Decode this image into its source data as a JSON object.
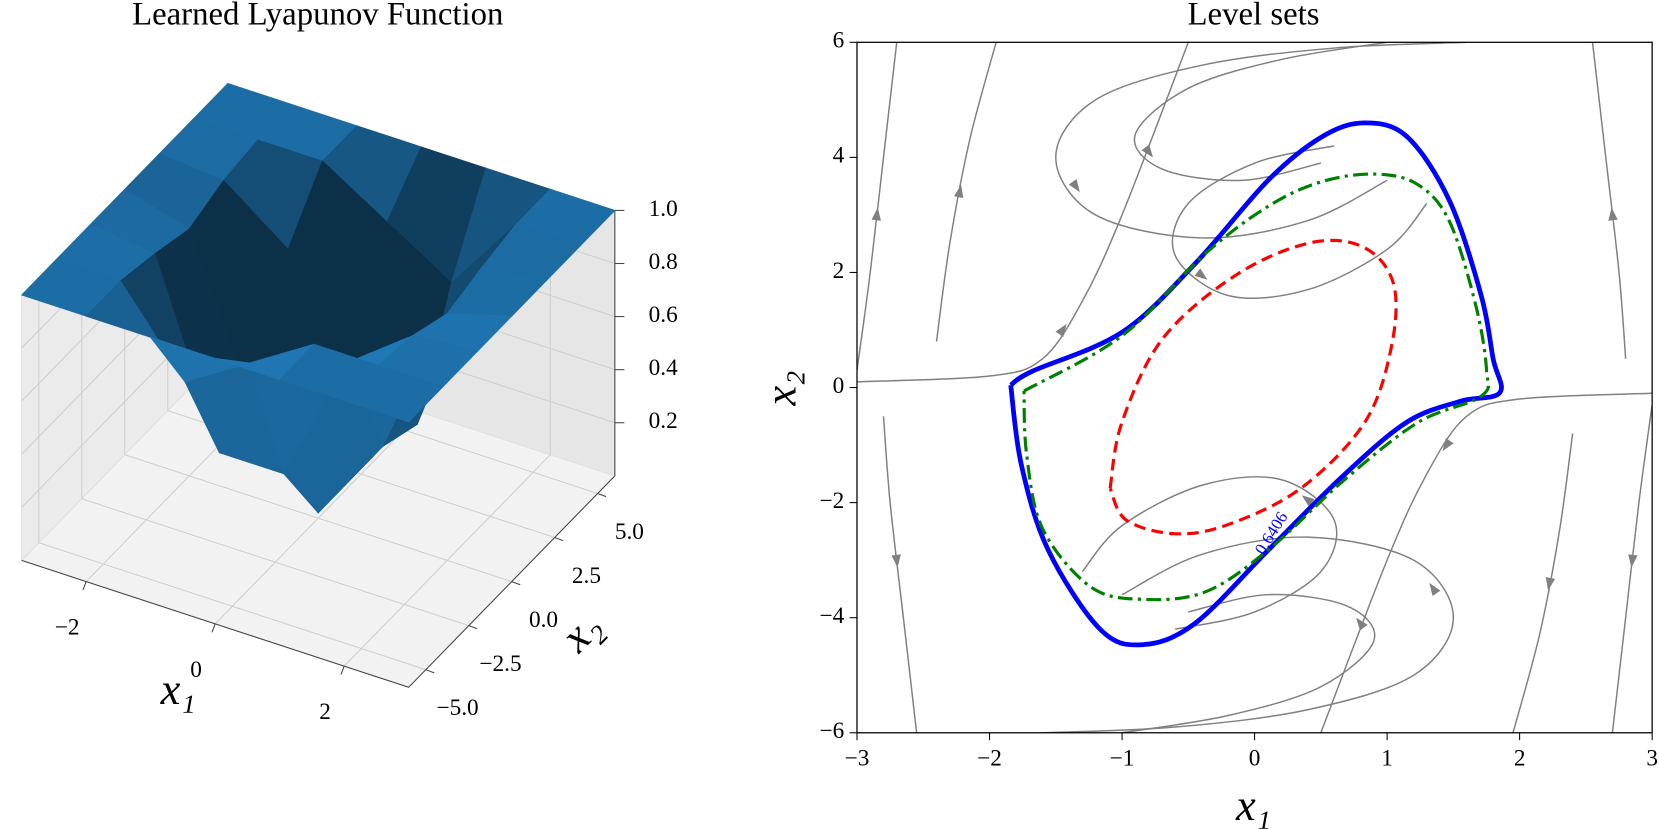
{
  "chart_data": [
    {
      "type": "surface",
      "title": "Learned Lyapunov Function",
      "xlabel": "x₁",
      "ylabel": "x₂",
      "x": [
        -3,
        -2,
        -1,
        0,
        1,
        2,
        3
      ],
      "y": [
        -6,
        -4,
        -2,
        0,
        2,
        4,
        6
      ],
      "z": [
        [
          1,
          1,
          1,
          1,
          1,
          1,
          1
        ],
        [
          1,
          1,
          0.97,
          0.93,
          0.98,
          1,
          1
        ],
        [
          1,
          0.7,
          0.3,
          0.35,
          0.8,
          1,
          1
        ],
        [
          1,
          0.85,
          0.3,
          0.02,
          0.3,
          0.85,
          1
        ],
        [
          1,
          1,
          0.8,
          0.35,
          0.3,
          0.7,
          1
        ],
        [
          1,
          1,
          0.98,
          0.93,
          0.97,
          1,
          1
        ],
        [
          1,
          1,
          1,
          1,
          1,
          1,
          1
        ]
      ],
      "color": "#1f77b4",
      "xlim": [
        -3,
        3
      ],
      "ylim": [
        -6,
        6
      ],
      "zlim": [
        0,
        1
      ],
      "xticks": [
        {
          "value": -2,
          "label": "−2"
        },
        0,
        2
      ],
      "yticks": [
        {
          "value": -5,
          "label": "−5.0"
        },
        {
          "value": -2.5,
          "label": "−2.5"
        },
        {
          "value": 0,
          "label": "0.0"
        },
        2.5,
        {
          "value": 5,
          "label": "5.0"
        }
      ],
      "zticks": [
        0.2,
        0.4,
        0.6,
        0.8,
        {
          "value": 1,
          "label": "1.0"
        }
      ]
    },
    {
      "type": "contour",
      "title": "Level sets",
      "xlabel": "x₁",
      "ylabel": "x₂",
      "xlim": [
        -3,
        3
      ],
      "ylim": [
        -6,
        6
      ],
      "xticks": [
        {
          "value": -3,
          "label": "−3"
        },
        {
          "value": -2,
          "label": "−2"
        },
        {
          "value": -1,
          "label": "−1"
        },
        0,
        1,
        2,
        3
      ],
      "yticks": [
        {
          "value": -6,
          "label": "−6"
        },
        {
          "value": -4,
          "label": "−4"
        },
        {
          "value": -2,
          "label": "−2"
        },
        0,
        2,
        4,
        6
      ],
      "series": [
        {
          "color": "#0000ff",
          "linestyle": "solid",
          "x": [
            -1.84,
            -1.68,
            -1.0,
            -0.45,
            0.11,
            0.51,
            0.83,
            1.15,
            1.47,
            1.71,
            1.8,
            1.85,
            1.55,
            1.15,
            0.67,
            0.11,
            -0.45,
            -0.85,
            -1.17,
            -1.56,
            -1.76,
            -1.84
          ],
          "values": [
            0.04,
            0.28,
            0.96,
            2.15,
            3.62,
            4.36,
            4.6,
            4.36,
            3.25,
            1.6,
            0.5,
            -0.09,
            -0.24,
            -0.6,
            -1.53,
            -2.81,
            -4.1,
            -4.47,
            -4.19,
            -2.81,
            -1.34,
            0.04
          ]
        },
        {
          "color": "#008000",
          "linestyle": "dashdot",
          "x": [
            -1.74,
            -1.0,
            -0.37,
            0.11,
            0.51,
            0.91,
            1.23,
            1.47,
            1.67,
            1.75,
            1.71,
            1.23,
            0.67,
            0.11,
            -0.37,
            -0.85,
            -1.24,
            -1.6,
            -1.72,
            -1.74
          ],
          "values": [
            -0.06,
            0.9,
            2.33,
            3.16,
            3.58,
            3.71,
            3.53,
            2.89,
            1.42,
            0.31,
            -0.15,
            -0.61,
            -1.62,
            -2.81,
            -3.55,
            -3.68,
            -3.46,
            -2.45,
            -1.16,
            -0.06
          ]
        },
        {
          "color": "#ff0000",
          "linestyle": "dashed",
          "x": [
            -1.09,
            -1.0,
            -0.69,
            -0.13,
            0.43,
            0.83,
            1.05,
            1.03,
            0.83,
            0.35,
            -0.21,
            -0.61,
            -0.97,
            -1.09
          ],
          "values": [
            -1.75,
            -0.6,
            0.86,
            1.97,
            2.52,
            2.43,
            1.79,
            0.68,
            -0.61,
            -1.75,
            -2.39,
            -2.54,
            -2.3,
            -1.75
          ]
        }
      ],
      "contour_level": 0.6406,
      "stream_color": "#808080",
      "streamlines": [
        {
          "x": [
            -3,
            -2.9,
            -2.8,
            -2.7
          ],
          "y": [
            0.3,
            2,
            4,
            6
          ]
        },
        {
          "x": [
            3,
            2.9,
            2.8,
            2.7
          ],
          "y": [
            -0.3,
            -2,
            -4,
            -6
          ]
        },
        {
          "x": [
            -2.8,
            -2.75,
            -2.65,
            -2.55
          ],
          "y": [
            -0.5,
            -2,
            -4,
            -6
          ]
        },
        {
          "x": [
            2.8,
            2.75,
            2.65,
            2.55
          ],
          "y": [
            0.5,
            2,
            4,
            6
          ]
        },
        {
          "x": [
            -2.4,
            -2.3,
            -2.15,
            -1.95
          ],
          "y": [
            0.8,
            2.5,
            4.3,
            6
          ]
        },
        {
          "x": [
            2.4,
            2.3,
            2.15,
            1.95
          ],
          "y": [
            -0.8,
            -2.5,
            -4.3,
            -6
          ]
        },
        {
          "x": [
            -3,
            -2,
            -1.6,
            -1.3,
            -1.0,
            -0.5
          ],
          "y": [
            0.1,
            0.2,
            0.5,
            1.5,
            3.0,
            6
          ]
        },
        {
          "x": [
            3,
            2,
            1.6,
            1.3,
            1.0,
            0.5
          ],
          "y": [
            -0.1,
            -0.2,
            -0.5,
            -1.5,
            -3.0,
            -6
          ]
        },
        {
          "x": [
            1.6,
            0.6,
            -0.4,
            -1.2,
            -1.5,
            -1.2,
            -0.4,
            0.4,
            1.0
          ],
          "y": [
            6,
            5.9,
            5.6,
            5.0,
            4.0,
            3.0,
            2.6,
            2.9,
            3.6
          ]
        },
        {
          "x": [
            -1.6,
            -0.6,
            0.4,
            1.2,
            1.5,
            1.2,
            0.4,
            -0.4,
            -1.0
          ],
          "y": [
            -6,
            -5.9,
            -5.6,
            -5.0,
            -4.0,
            -3.0,
            -2.6,
            -2.9,
            -3.6
          ]
        },
        {
          "x": [
            1.0,
            0.2,
            -0.5,
            -0.9,
            -0.7,
            -0.1,
            0.5
          ],
          "y": [
            6,
            5.7,
            5.2,
            4.4,
            3.8,
            3.6,
            3.9
          ]
        },
        {
          "x": [
            -1.0,
            -0.2,
            0.5,
            0.9,
            0.7,
            0.1,
            -0.5
          ],
          "y": [
            -6,
            -5.7,
            -5.2,
            -4.4,
            -3.8,
            -3.6,
            -3.9
          ]
        },
        {
          "x": [
            0.6,
            0,
            -0.5,
            -0.6,
            -0.2,
            0.4,
            1.0,
            1.3
          ],
          "y": [
            4.2,
            3.9,
            3.2,
            2.3,
            1.6,
            1.7,
            2.4,
            3.2
          ]
        },
        {
          "x": [
            -0.6,
            0,
            0.5,
            0.6,
            0.2,
            -0.4,
            -1.0,
            -1.3
          ],
          "y": [
            -4.2,
            -3.9,
            -3.2,
            -2.3,
            -1.6,
            -1.7,
            -2.4,
            -3.2
          ]
        }
      ]
    }
  ]
}
